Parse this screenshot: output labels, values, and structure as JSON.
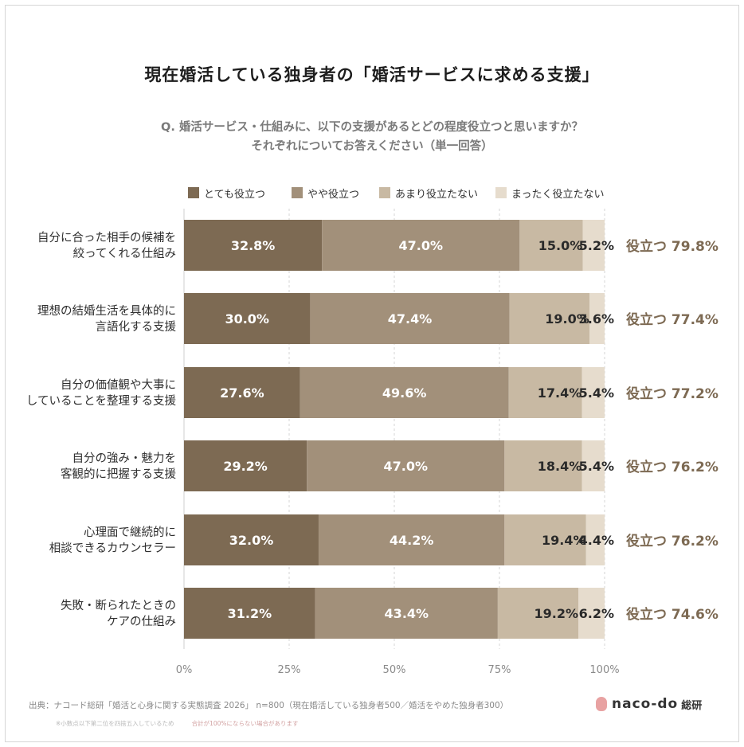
{
  "title": "現在婚活している独身者の「婚活サービスに求める支援」",
  "question_line1": "Q. 婚活サービス・仕組みに、以下の支援があるとどの程度役立つと思いますか？",
  "question_line2": "それぞれについてお答えください（単一回答）",
  "legend": [
    {
      "label": "とても役立つ",
      "color": "#7d6a53"
    },
    {
      "label": "やや役立つ",
      "color": "#a2907a"
    },
    {
      "label": "あまり役立たない",
      "color": "#c8b9a3"
    },
    {
      "label": "まったく役立たない",
      "color": "#e6dccd"
    }
  ],
  "chart_data": {
    "type": "bar",
    "orientation": "horizontal",
    "stacked": true,
    "categories": [
      "自分に合った相手の候補を\n絞ってくれる仕組み",
      "理想の結婚生活を具体的に\n言語化する支援",
      "自分の価値観や大事に\nしていることを整理する支援",
      "自分の強み・魅力を\n客観的に把握する支援",
      "心理面で継続的に\n相談できるカウンセラー",
      "失敗・断られたときの\nケアの仕組み"
    ],
    "series": [
      {
        "name": "とても役立つ",
        "values": [
          32.8,
          30.0,
          27.6,
          29.2,
          32.0,
          31.2
        ]
      },
      {
        "name": "やや役立つ",
        "values": [
          47.0,
          47.4,
          49.6,
          47.0,
          44.2,
          43.4
        ]
      },
      {
        "name": "あまり役立たない",
        "values": [
          15.0,
          19.0,
          17.4,
          18.4,
          19.4,
          19.2
        ]
      },
      {
        "name": "まったく役立たない",
        "values": [
          5.2,
          3.6,
          5.4,
          5.4,
          4.4,
          6.2
        ]
      }
    ],
    "labels": [
      [
        "32.8%",
        "47.0%",
        "15.0%",
        "5.2%"
      ],
      [
        "30.0%",
        "47.4%",
        "19.0%",
        "3.6%"
      ],
      [
        "27.6%",
        "49.6%",
        "17.4%",
        "5.4%"
      ],
      [
        "29.2%",
        "47.0%",
        "18.4%",
        "5.4%"
      ],
      [
        "32.0%",
        "44.2%",
        "19.4%",
        "4.4%"
      ],
      [
        "31.2%",
        "43.4%",
        "19.2%",
        "6.2%"
      ]
    ],
    "totals": [
      "役立つ 79.8%",
      "役立つ 77.4%",
      "役立つ 77.2%",
      "役立つ 76.2%",
      "役立つ 76.2%",
      "役立つ 74.6%"
    ],
    "xticks": [
      "0%",
      "25%",
      "50%",
      "75%",
      "100%"
    ],
    "xlim": [
      0,
      100
    ],
    "grid": true,
    "legend_position": "top"
  },
  "source": "出典：ナコード総研「婚活と心身に関する実態調査 2026」 n=800（現在婚活している独身者500／婚活をやめた独身者300）",
  "note1": "※小数点以下第二位を四捨五入しているため",
  "note2": "合計が100%にならない場合があります",
  "logo": {
    "name": "naco-do",
    "suffix": "総研"
  }
}
